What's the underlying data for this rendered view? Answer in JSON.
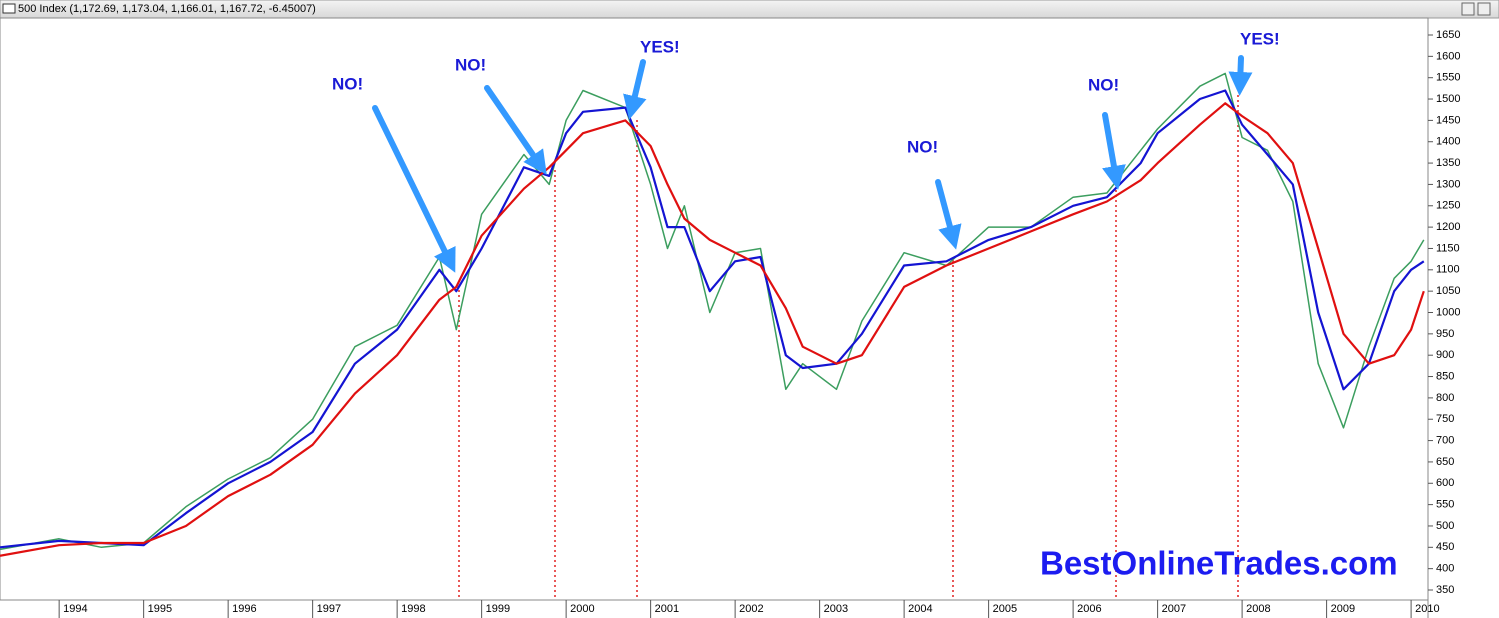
{
  "chart_data": {
    "type": "line",
    "title": "500 Index (1,172.69, 1,173.04, 1,166.01, 1,167.72, -6.45007)",
    "watermark": "BestOnlineTrades.com",
    "annotations": [
      "NO!",
      "NO!",
      "YES!",
      "NO!",
      "NO!",
      "YES!"
    ],
    "x": [
      1993.3,
      1994,
      1994.5,
      1995,
      1995.5,
      1996,
      1996.5,
      1997,
      1997.5,
      1998,
      1998.5,
      1998.7,
      1999,
      1999.5,
      1999.8,
      2000,
      2000.2,
      2000.7,
      2001,
      2001.2,
      2001.4,
      2001.7,
      2002,
      2002.3,
      2002.6,
      2002.8,
      2003.2,
      2003.5,
      2004,
      2004.5,
      2005,
      2005.5,
      2006,
      2006.4,
      2006.8,
      2007,
      2007.5,
      2007.8,
      2008,
      2008.3,
      2008.6,
      2008.9,
      2009.2,
      2009.5,
      2009.8,
      2010,
      2010.15
    ],
    "series": [
      {
        "color": "#3c9e5f",
        "values": [
          445,
          470,
          450,
          460,
          545,
          610,
          660,
          750,
          920,
          970,
          1130,
          960,
          1230,
          1370,
          1300,
          1450,
          1520,
          1480,
          1300,
          1150,
          1250,
          1000,
          1140,
          1150,
          820,
          880,
          820,
          980,
          1140,
          1110,
          1200,
          1200,
          1270,
          1280,
          1380,
          1430,
          1530,
          1560,
          1410,
          1380,
          1260,
          880,
          730,
          920,
          1080,
          1120,
          1170
        ]
      },
      {
        "color": "#1414d2",
        "values": [
          450,
          465,
          460,
          455,
          530,
          600,
          650,
          720,
          880,
          960,
          1100,
          1050,
          1150,
          1340,
          1320,
          1420,
          1470,
          1480,
          1340,
          1200,
          1200,
          1050,
          1120,
          1130,
          900,
          870,
          880,
          950,
          1110,
          1120,
          1170,
          1200,
          1250,
          1270,
          1350,
          1420,
          1500,
          1520,
          1440,
          1370,
          1300,
          1000,
          820,
          880,
          1050,
          1100,
          1120
        ]
      },
      {
        "color": "#e01010",
        "values": [
          430,
          455,
          460,
          460,
          500,
          570,
          620,
          690,
          810,
          900,
          1030,
          1060,
          1180,
          1290,
          1340,
          1380,
          1420,
          1450,
          1390,
          1300,
          1220,
          1170,
          1140,
          1110,
          1010,
          920,
          880,
          900,
          1060,
          1110,
          1150,
          1190,
          1230,
          1260,
          1310,
          1350,
          1440,
          1490,
          1460,
          1420,
          1350,
          1150,
          950,
          880,
          900,
          960,
          1050
        ]
      }
    ],
    "xlim": [
      1993.3,
      2010.2
    ],
    "xticks": [
      1994,
      1995,
      1996,
      1997,
      1998,
      1999,
      2000,
      2001,
      2002,
      2003,
      2004,
      2005,
      2006,
      2007,
      2008,
      2009,
      2010
    ],
    "ylim": [
      350,
      1650
    ],
    "yticks": [
      350,
      400,
      450,
      500,
      550,
      600,
      650,
      700,
      750,
      800,
      850,
      900,
      950,
      1000,
      1050,
      1100,
      1150,
      1200,
      1250,
      1300,
      1350,
      1400,
      1450,
      1500,
      1550,
      1600,
      1650
    ]
  }
}
